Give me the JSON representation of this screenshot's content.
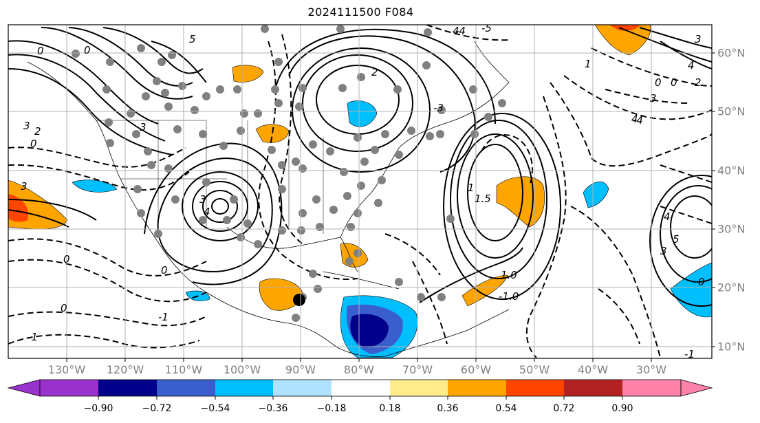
{
  "title": "2024111500 F084",
  "lon_labels": [
    "130°W",
    "120°W",
    "110°W",
    "100°W",
    "90°W",
    "80°W",
    "70°W",
    "60°W",
    "50°W",
    "40°W",
    "30°W"
  ],
  "lat_labels": [
    "60°N",
    "50°N",
    "40°N",
    "30°N",
    "20°N",
    "10°N"
  ],
  "colorbar": {
    "ticks": [
      "−0.90",
      "−0.72",
      "−0.54",
      "−0.36",
      "−0.18",
      "0.18",
      "0.36",
      "0.54",
      "0.72",
      "0.90"
    ],
    "colors": [
      "#9932cc",
      "#00008b",
      "#3a5fcd",
      "#00bfff",
      "#b0e2ff",
      "#ffffff",
      "#ffec8b",
      "#ffa500",
      "#ff4500",
      "#b22222",
      "#ff82ab"
    ]
  },
  "contour_labels": [
    "0",
    "1",
    "2",
    "3",
    "4",
    "5",
    "-1",
    "-2",
    "-3",
    "-4",
    "-5",
    "1.0",
    "-1.0",
    "1.5"
  ]
}
